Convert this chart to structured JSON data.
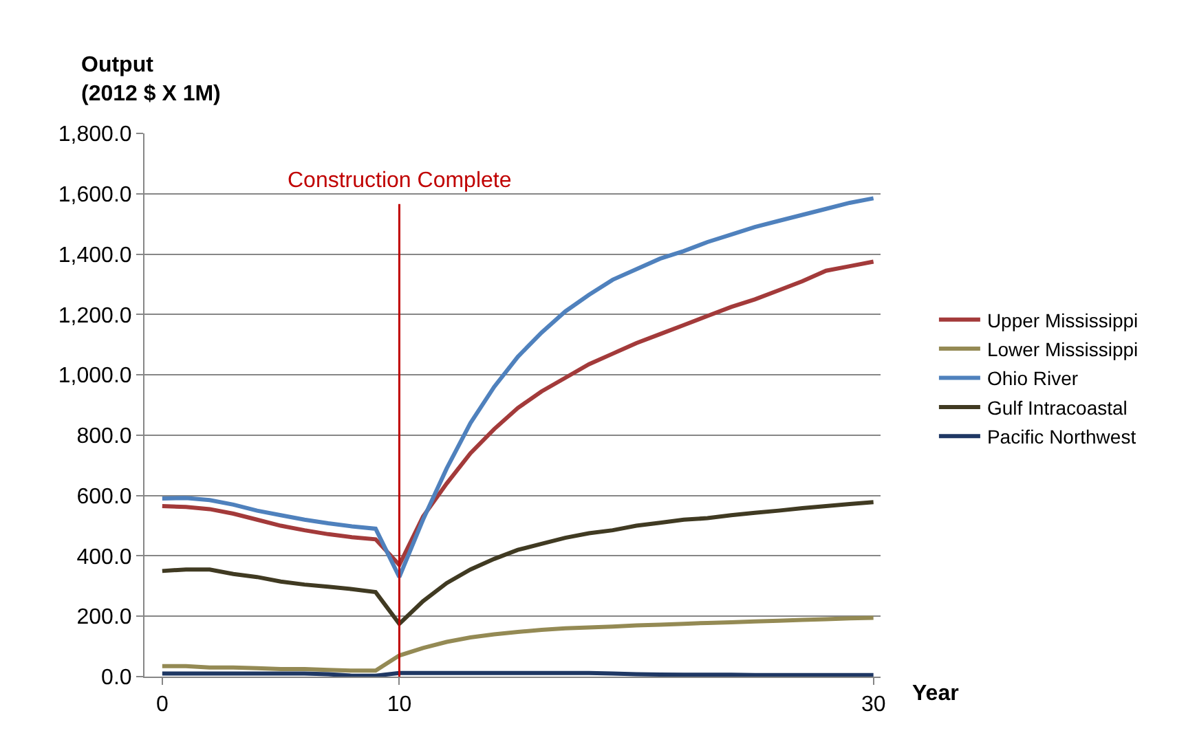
{
  "chart_data": {
    "type": "line",
    "ylabel": "Output\n(2012 $ X 1M)",
    "xlabel": "Year",
    "x": [
      0,
      1,
      2,
      3,
      4,
      5,
      6,
      7,
      8,
      9,
      10,
      11,
      12,
      13,
      14,
      15,
      16,
      17,
      18,
      19,
      20,
      21,
      22,
      23,
      24,
      25,
      26,
      27,
      28,
      29,
      30
    ],
    "xlim": [
      -0.75,
      30.3
    ],
    "xticks": [
      0,
      10,
      30
    ],
    "ylim": [
      0,
      1800
    ],
    "yticks": [
      {
        "value": 0,
        "label": "0.0"
      },
      {
        "value": 200,
        "label": "200.0"
      },
      {
        "value": 400,
        "label": "400.0"
      },
      {
        "value": 600,
        "label": "600.0"
      },
      {
        "value": 800,
        "label": "800.0"
      },
      {
        "value": 1000,
        "label": "1,000.0"
      },
      {
        "value": 1200,
        "label": "1,200.0"
      },
      {
        "value": 1400,
        "label": "1,400.0"
      },
      {
        "value": 1600,
        "label": "1,600.0"
      },
      {
        "value": 1800,
        "label": "1,800.0"
      }
    ],
    "grid": "y",
    "legend": "right",
    "marker": "none",
    "line_style": "solid",
    "series": [
      {
        "name": "Upper Mississippi",
        "color": "#a33a3a",
        "values": [
          565,
          562,
          555,
          540,
          520,
          500,
          485,
          472,
          462,
          455,
          370,
          530,
          640,
          740,
          820,
          890,
          945,
          990,
          1035,
          1070,
          1105,
          1135,
          1165,
          1195,
          1225,
          1250,
          1280,
          1310,
          1345,
          1360,
          1375
        ]
      },
      {
        "name": "Lower Mississippi",
        "color": "#948a54",
        "values": [
          35,
          35,
          30,
          30,
          28,
          25,
          25,
          22,
          20,
          20,
          70,
          95,
          115,
          130,
          140,
          148,
          155,
          160,
          163,
          166,
          170,
          172,
          175,
          178,
          180,
          183,
          185,
          188,
          190,
          193,
          195
        ]
      },
      {
        "name": "Ohio River",
        "color": "#4f81bd",
        "values": [
          590,
          592,
          585,
          570,
          550,
          535,
          520,
          508,
          498,
          490,
          330,
          520,
          690,
          840,
          960,
          1060,
          1140,
          1210,
          1265,
          1315,
          1350,
          1385,
          1410,
          1440,
          1465,
          1490,
          1510,
          1530,
          1550,
          1570,
          1585
        ]
      },
      {
        "name": "Gulf Intracoastal",
        "color": "#403a22",
        "values": [
          350,
          355,
          355,
          340,
          330,
          315,
          305,
          298,
          290,
          280,
          175,
          250,
          310,
          355,
          390,
          420,
          440,
          460,
          475,
          485,
          500,
          510,
          520,
          525,
          535,
          543,
          550,
          558,
          565,
          572,
          578
        ]
      },
      {
        "name": "Pacific Northwest",
        "color": "#1f3864",
        "values": [
          10,
          10,
          10,
          10,
          10,
          10,
          10,
          8,
          3,
          3,
          12,
          12,
          12,
          12,
          12,
          12,
          12,
          12,
          12,
          10,
          8,
          7,
          6,
          6,
          6,
          5,
          5,
          5,
          5,
          5,
          5
        ]
      }
    ],
    "ref_lines": [
      {
        "axis": "x",
        "value": 10,
        "label": "Construction Complete",
        "color": "#c00000"
      }
    ]
  }
}
